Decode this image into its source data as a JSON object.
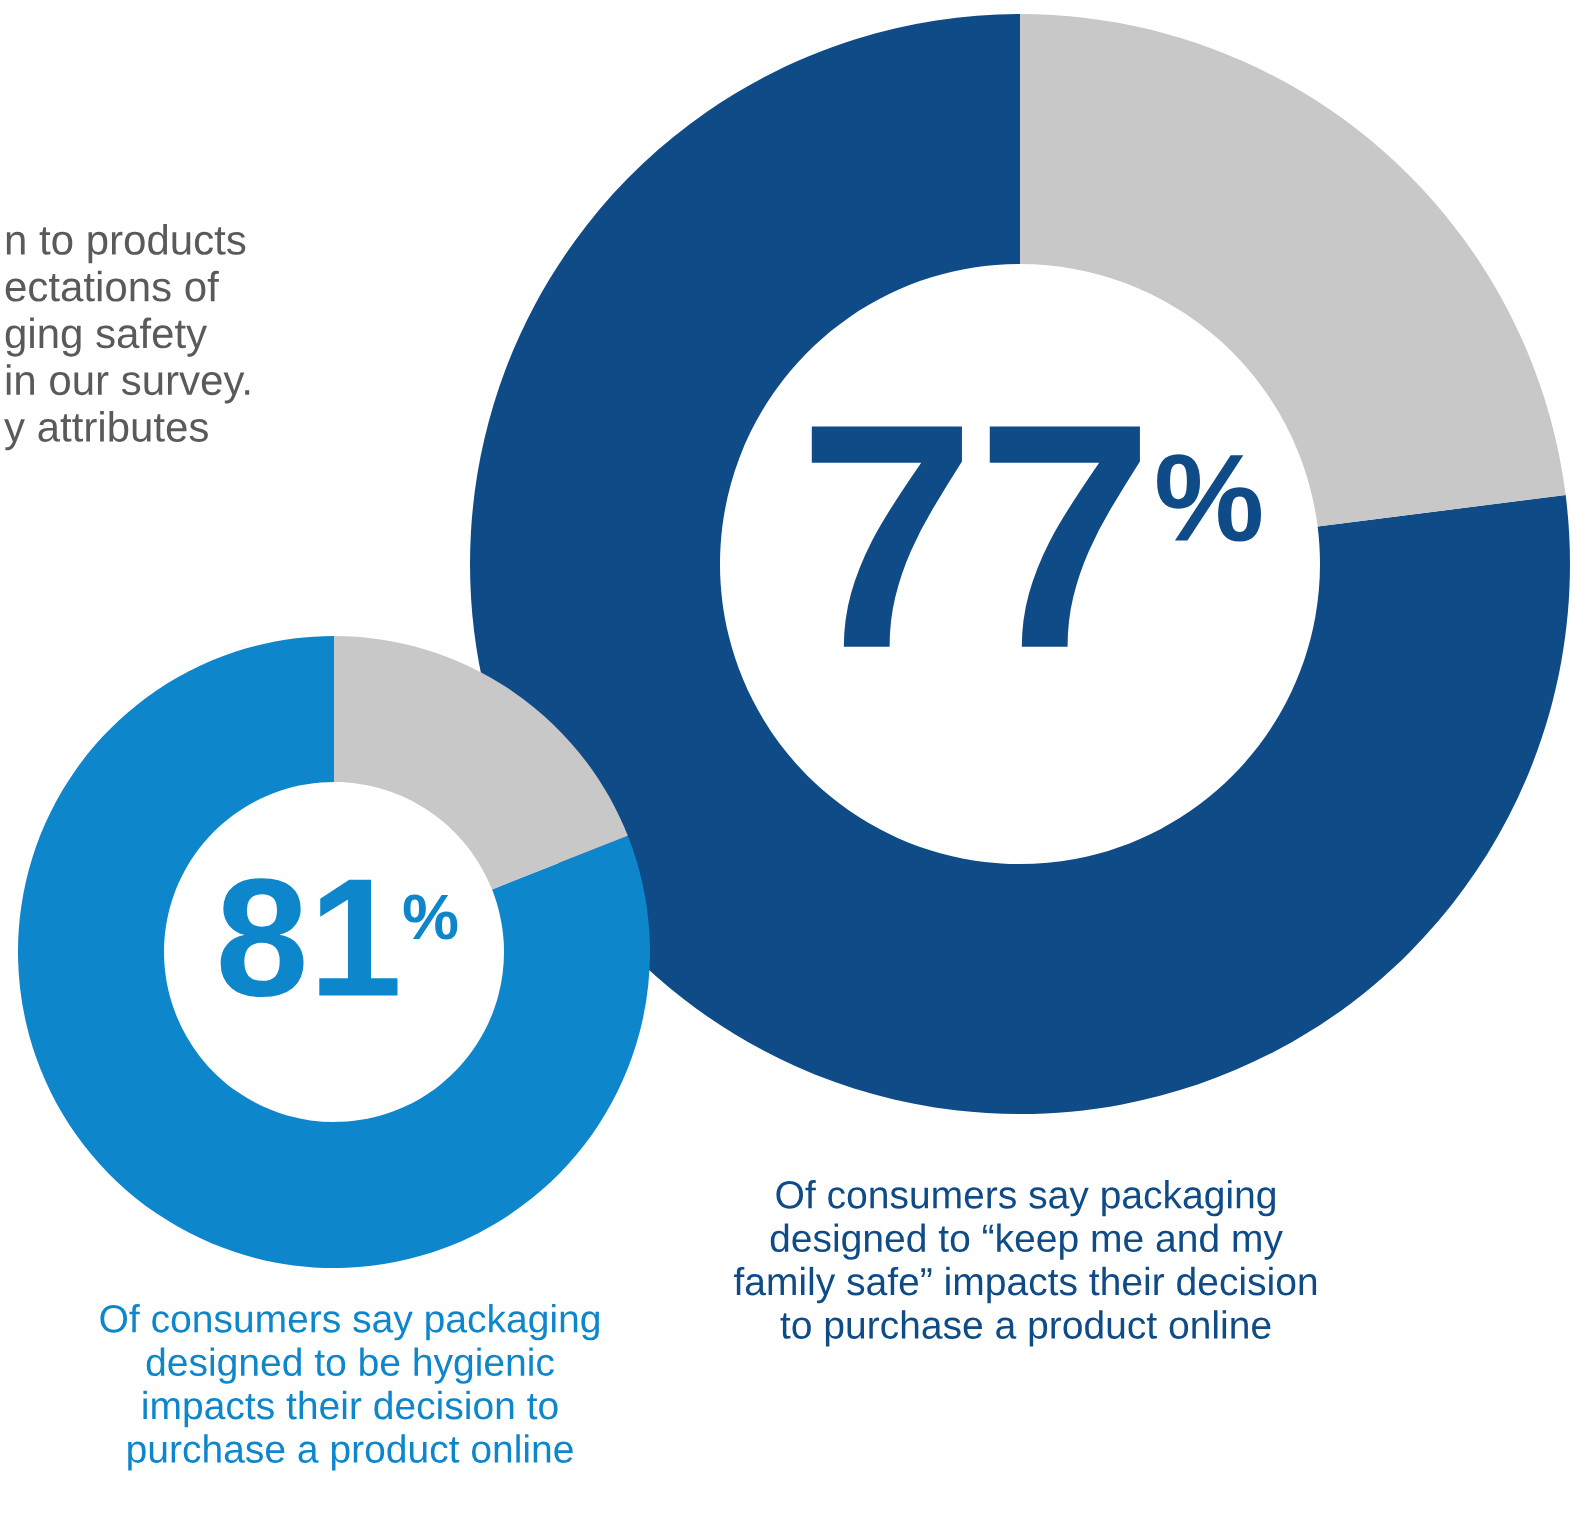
{
  "chart_data": [
    {
      "type": "donut",
      "categories": [
        null,
        null
      ],
      "values": [
        77,
        23
      ],
      "colors": [
        "#0f4c87",
        "#c8c8c8"
      ],
      "annotations": [
        "77%",
        "Of consumers say packaging\ndesigned to “keep me and my\nfamily safe” impacts their decision\nto purchase a product online",
        "n to products\nectations of\nging safety\nin our survey.\ny attributes"
      ]
    },
    {
      "type": "donut",
      "categories": [
        null,
        null
      ],
      "values": [
        81,
        19
      ],
      "colors": [
        "#0e86cc",
        "#c8c8c8"
      ],
      "annotations": [
        "81%",
        "Of consumers say packaging\ndesigned to be hygienic\nimpacts their decision to\npurchase a product online"
      ]
    }
  ]
}
